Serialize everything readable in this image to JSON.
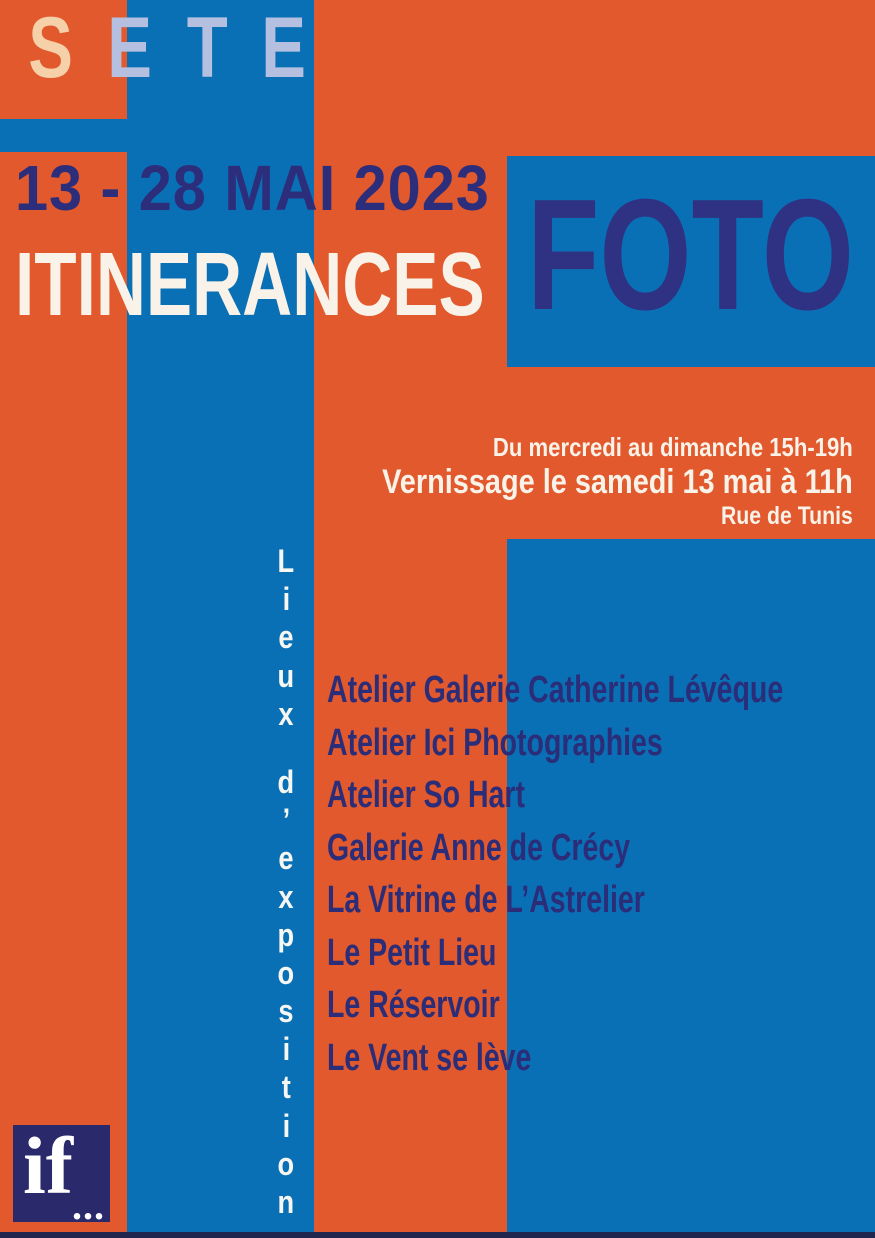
{
  "poster": {
    "city_letters": [
      "S",
      "E",
      "T",
      "E"
    ],
    "date_range": "13 - 28 MAI 2023",
    "title": "ITINERANCES",
    "title_foto": "FOTO",
    "schedule": {
      "hours": "Du mercredi au dimanche 15h-19h",
      "vernissage": "Vernissage le samedi 13 mai à 11h",
      "address": "Rue de Tunis"
    },
    "vertical_label": {
      "text": "Lieux d’exposition",
      "letters": [
        "L",
        "i",
        "e",
        "u",
        "x",
        "d",
        "’",
        "e",
        "x",
        "p",
        "o",
        "s",
        "i",
        "t",
        "i",
        "o",
        "n"
      ]
    },
    "venues": [
      "Atelier Galerie Catherine Lévêque",
      "Atelier Ici Photographies",
      "Atelier So Hart",
      "Galerie Anne de Crécy",
      "La Vitrine de L’Astrelier",
      "Le Petit Lieu",
      "Le Réservoir",
      "Le Vent se lève"
    ],
    "logo": {
      "text": "if",
      "dots": "..."
    }
  },
  "colors": {
    "background_orange": "#e1592c",
    "block_blue": "#0a70b5",
    "navy_text": "#2c2e7b",
    "foto_navy": "#2f3182",
    "cream_letter": "#f5d0a8",
    "periwinkle_letter": "#b5c0e0",
    "off_white_text": "#f8f2e8",
    "logo_navy": "#29296b",
    "bottom_strip": "#20264d"
  }
}
